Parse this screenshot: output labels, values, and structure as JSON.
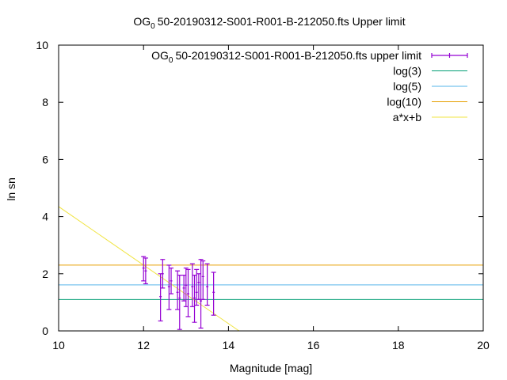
{
  "chart_data": {
    "type": "scatter",
    "title_prefix": "OG",
    "title_sub": "0",
    "title_suffix": "50-20190312-S001-R001-B-212050.fts Upper limit",
    "xlabel": "Magnitude [mag]",
    "ylabel": "ln sn",
    "xlim": [
      10,
      20
    ],
    "ylim": [
      0,
      10
    ],
    "xticks": [
      "10",
      "12",
      "14",
      "16",
      "18",
      "20"
    ],
    "yticks": [
      "0",
      "2",
      "4",
      "6",
      "8",
      "10"
    ],
    "grid": false,
    "legend_position": "top-right",
    "series": [
      {
        "name_prefix": "OG",
        "name_sub": "0",
        "name_suffix": "50-20190312-S001-R001-B-212050.fts upper limit",
        "kind": "errorbars",
        "color": "#9400d3",
        "points": [
          {
            "x": 12.0,
            "y": 2.2,
            "ylow": 1.75,
            "yhigh": 2.6
          },
          {
            "x": 12.05,
            "y": 2.1,
            "ylow": 1.65,
            "yhigh": 2.55
          },
          {
            "x": 12.4,
            "y": 1.2,
            "ylow": 0.35,
            "yhigh": 2.0
          },
          {
            "x": 12.45,
            "y": 2.0,
            "ylow": 1.5,
            "yhigh": 2.5
          },
          {
            "x": 12.6,
            "y": 1.55,
            "ylow": 0.75,
            "yhigh": 2.3
          },
          {
            "x": 12.65,
            "y": 1.75,
            "ylow": 1.3,
            "yhigh": 2.2
          },
          {
            "x": 12.8,
            "y": 1.35,
            "ylow": 0.75,
            "yhigh": 2.1
          },
          {
            "x": 12.85,
            "y": 1.15,
            "ylow": 0.05,
            "yhigh": 1.95
          },
          {
            "x": 12.95,
            "y": 1.5,
            "ylow": 1.05,
            "yhigh": 1.95
          },
          {
            "x": 13.0,
            "y": 1.6,
            "ylow": 0.85,
            "yhigh": 2.2
          },
          {
            "x": 13.05,
            "y": 1.3,
            "ylow": 0.5,
            "yhigh": 2.15
          },
          {
            "x": 13.15,
            "y": 1.55,
            "ylow": 0.85,
            "yhigh": 2.35
          },
          {
            "x": 13.2,
            "y": 1.15,
            "ylow": 0.3,
            "yhigh": 1.95
          },
          {
            "x": 13.25,
            "y": 1.35,
            "ylow": 0.9,
            "yhigh": 2.15
          },
          {
            "x": 13.3,
            "y": 1.7,
            "ylow": 1.1,
            "yhigh": 2.0
          },
          {
            "x": 13.35,
            "y": 1.05,
            "ylow": 0.1,
            "yhigh": 2.5
          },
          {
            "x": 13.4,
            "y": 1.9,
            "ylow": 1.1,
            "yhigh": 2.45
          },
          {
            "x": 13.5,
            "y": 1.55,
            "ylow": 0.9,
            "yhigh": 2.35
          },
          {
            "x": 13.65,
            "y": 1.35,
            "ylow": 0.55,
            "yhigh": 2.05
          }
        ]
      },
      {
        "name": "log(3)",
        "kind": "hline",
        "y": 1.0986,
        "color": "#009e73"
      },
      {
        "name": "log(5)",
        "kind": "hline",
        "y": 1.6094,
        "color": "#56b4e9"
      },
      {
        "name": "log(10)",
        "kind": "hline",
        "y": 2.3026,
        "color": "#e69f00"
      },
      {
        "name": "a*x+b",
        "kind": "line",
        "x": [
          10,
          14.25
        ],
        "y": [
          4.35,
          0.0
        ],
        "color": "#f0e442"
      }
    ]
  }
}
